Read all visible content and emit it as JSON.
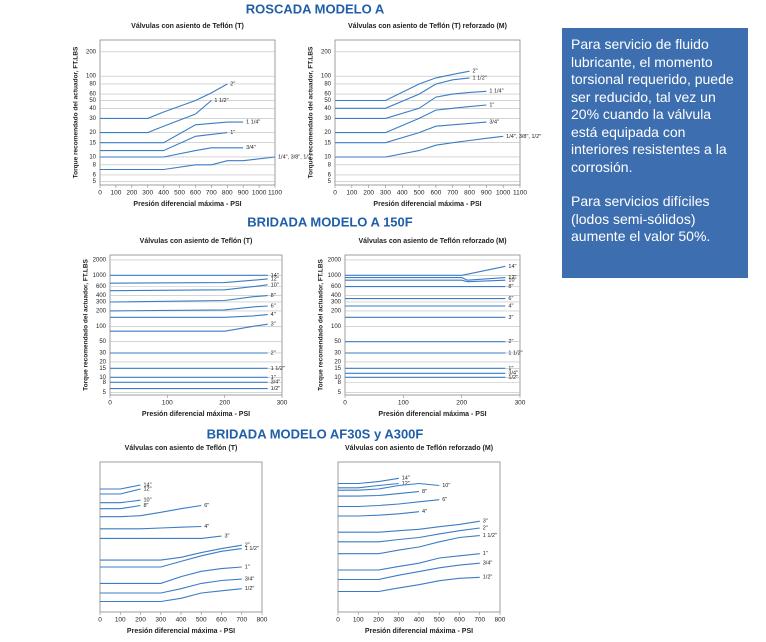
{
  "headings": [
    "ROSCADA MODELO A",
    "BRIDADA MODELO A 150F",
    "BRIDADA MODELO AF30S y A300F"
  ],
  "note": {
    "paragraphs": [
      "Para servicio de fluido lubricante, el momento torsional requerido, puede ser reducido, tal vez un 20% cuando la válvula está equipada con interiores resistentes a la corrosión.",
      "Para servicios difíciles (lodos semi-sólidos) aumente el valor 50%."
    ]
  },
  "chart_data": [
    {
      "type": "line",
      "title": "Válvulas con asiento de Teflón (T)",
      "x_label": "Presión diferencial máxima - PSI",
      "y_label": "Torque recomendado del actuador, FT.LBS",
      "log_y": true,
      "grid": true,
      "color": "#3b7dc4",
      "xlim": [
        0,
        1100
      ],
      "xticks": [
        0,
        100,
        200,
        300,
        400,
        500,
        600,
        700,
        800,
        900,
        1000,
        1100
      ],
      "ylim": [
        4.5,
        280
      ],
      "yticks": [
        5,
        6,
        8,
        10,
        15,
        20,
        30,
        40,
        50,
        60,
        80,
        100,
        200
      ],
      "x": [
        0,
        300,
        400,
        600,
        700,
        800,
        900,
        1100
      ],
      "series": [
        {
          "name": "2\"",
          "values": [
            30,
            30,
            36,
            50,
            62,
            80,
            null,
            null
          ]
        },
        {
          "name": "1 1/2\"",
          "values": [
            20,
            20,
            24,
            34,
            50,
            null,
            null,
            null
          ]
        },
        {
          "name": "1 1/4\"",
          "values": [
            15,
            15,
            15,
            25,
            26,
            27,
            27,
            null
          ]
        },
        {
          "name": "1\"",
          "values": [
            12,
            12,
            12,
            18,
            19,
            20,
            null,
            null
          ]
        },
        {
          "name": "3/4\"",
          "values": [
            10,
            10,
            10,
            12,
            13,
            13,
            13,
            null
          ]
        },
        {
          "name": "1/4\", 3/8\", 1/2\"",
          "values": [
            7,
            7,
            7,
            8,
            8,
            9,
            9,
            10
          ]
        }
      ]
    },
    {
      "type": "line",
      "title": "Válvulas con asiento de Teflón (T) reforzado (M)",
      "x_label": "Presión diferencial máxima - PSI",
      "y_label": "Torque recomendado del actuador, FT.LBS",
      "log_y": true,
      "grid": true,
      "color": "#3b7dc4",
      "xlim": [
        0,
        1100
      ],
      "xticks": [
        0,
        100,
        200,
        300,
        400,
        500,
        600,
        700,
        800,
        900,
        1000,
        1100
      ],
      "ylim": [
        4.5,
        280
      ],
      "yticks": [
        5,
        6,
        8,
        10,
        15,
        20,
        30,
        40,
        50,
        60,
        80,
        100,
        200
      ],
      "x": [
        0,
        300,
        500,
        600,
        700,
        800,
        900,
        1000
      ],
      "series": [
        {
          "name": "2\"",
          "values": [
            50,
            50,
            80,
            95,
            105,
            115,
            null,
            null
          ]
        },
        {
          "name": "1 1/2\"",
          "values": [
            40,
            40,
            60,
            80,
            90,
            95,
            null,
            null
          ]
        },
        {
          "name": "1 1/4\"",
          "values": [
            30,
            30,
            40,
            55,
            60,
            63,
            65,
            null
          ]
        },
        {
          "name": "1\"",
          "values": [
            20,
            20,
            30,
            38,
            40,
            42,
            44,
            null
          ]
        },
        {
          "name": "3/4\"",
          "values": [
            15,
            15,
            20,
            24,
            25,
            26,
            27,
            null
          ]
        },
        {
          "name": "1/4\", 3/8\", 1/2\"",
          "values": [
            10,
            10,
            12,
            14,
            15,
            16,
            17,
            18
          ]
        }
      ]
    },
    {
      "type": "line",
      "title": "Válvulas con asiento de Teflón (T)",
      "x_label": "Presión diferencial máxima - PSI",
      "y_label": "Torque recomendado del actuador, FT.LBS",
      "log_y": true,
      "grid": true,
      "color": "#3b7dc4",
      "xlim": [
        0,
        300
      ],
      "xticks": [
        0,
        100,
        200,
        300
      ],
      "ylim": [
        4.5,
        2500
      ],
      "yticks": [
        5,
        8,
        10,
        15,
        20,
        30,
        50,
        100,
        200,
        300,
        400,
        600,
        1000,
        2000
      ],
      "x": [
        0,
        200,
        250,
        275
      ],
      "series": [
        {
          "name": "14\"",
          "values": [
            1000,
            1000,
            1000,
            1000
          ]
        },
        {
          "name": "12\"",
          "values": [
            700,
            720,
            800,
            850
          ]
        },
        {
          "name": "10\"",
          "values": [
            500,
            520,
            600,
            650
          ]
        },
        {
          "name": "8\"",
          "values": [
            300,
            320,
            380,
            400
          ]
        },
        {
          "name": "6\"",
          "values": [
            200,
            210,
            240,
            250
          ]
        },
        {
          "name": "4\"",
          "values": [
            150,
            150,
            160,
            170
          ]
        },
        {
          "name": "3\"",
          "values": [
            80,
            80,
            100,
            110
          ]
        },
        {
          "name": "2\"",
          "values": [
            30,
            30,
            30,
            30
          ]
        },
        {
          "name": "1 1/2\"",
          "values": [
            15,
            15,
            15,
            15
          ]
        },
        {
          "name": "1\"",
          "values": [
            10,
            10,
            10,
            10
          ]
        },
        {
          "name": "3/4\"",
          "values": [
            8,
            8,
            8,
            8
          ]
        },
        {
          "name": "1/2\"",
          "values": [
            6,
            6,
            6,
            6
          ]
        }
      ]
    },
    {
      "type": "line",
      "title": "Válvulas con asiento de Teflón reforzado (M)",
      "x_label": "Presión diferencial máxima - PSI",
      "y_label": "Torque recomendado del actuador, FT.LBS",
      "log_y": true,
      "grid": true,
      "color": "#3b7dc4",
      "xlim": [
        0,
        300
      ],
      "xticks": [
        0,
        100,
        200,
        300
      ],
      "ylim": [
        4.5,
        2500
      ],
      "yticks": [
        5,
        8,
        10,
        15,
        20,
        30,
        50,
        100,
        200,
        300,
        400,
        600,
        1000,
        2000
      ],
      "x": [
        0,
        200,
        210,
        275
      ],
      "series": [
        {
          "name": "14\"",
          "values": [
            1000,
            1000,
            1050,
            1500
          ]
        },
        {
          "name": "12\"",
          "values": [
            900,
            900,
            800,
            900
          ]
        },
        {
          "name": "10\"",
          "values": [
            800,
            800,
            750,
            800
          ]
        },
        {
          "name": "8\"",
          "values": [
            600,
            600,
            600,
            600
          ]
        },
        {
          "name": "6\"",
          "values": [
            350,
            350,
            350,
            350
          ]
        },
        {
          "name": "4\"",
          "values": [
            250,
            250,
            250,
            250
          ]
        },
        {
          "name": "3\"",
          "values": [
            150,
            150,
            150,
            150
          ]
        },
        {
          "name": "2\"",
          "values": [
            50,
            50,
            50,
            50
          ]
        },
        {
          "name": "1 1/2\"",
          "values": [
            30,
            30,
            30,
            30
          ]
        },
        {
          "name": "1\"",
          "values": [
            15,
            15,
            15,
            15
          ]
        },
        {
          "name": "3/4\"",
          "values": [
            12,
            12,
            12,
            12
          ]
        },
        {
          "name": "1/2\"",
          "values": [
            10,
            10,
            10,
            10
          ]
        }
      ]
    },
    {
      "type": "line",
      "title": "Válvulas con asiento de Teflón (T)",
      "x_label": "Presión diferencial máxima - PSI",
      "log_y": true,
      "grid": false,
      "color": "#3b7dc4",
      "xlim": [
        0,
        800
      ],
      "xticks": [
        0,
        100,
        200,
        300,
        400,
        500,
        600,
        700,
        800
      ],
      "ylim": [
        4.5,
        2500
      ],
      "x": [
        0,
        100,
        200,
        300,
        400,
        500,
        600,
        700
      ],
      "series": [
        {
          "name": "14\"",
          "values": [
            800,
            800,
            950,
            null,
            null,
            null,
            null,
            null
          ]
        },
        {
          "name": "12\"",
          "values": [
            650,
            650,
            800,
            null,
            null,
            null,
            null,
            null
          ]
        },
        {
          "name": "10\"",
          "values": [
            450,
            450,
            500,
            null,
            null,
            null,
            null,
            null
          ]
        },
        {
          "name": "8\"",
          "values": [
            350,
            350,
            400,
            null,
            null,
            null,
            null,
            null
          ]
        },
        {
          "name": "6\"",
          "values": [
            250,
            250,
            260,
            300,
            350,
            400,
            null,
            null
          ]
        },
        {
          "name": "4\"",
          "values": [
            150,
            150,
            150,
            155,
            160,
            165,
            null,
            null
          ]
        },
        {
          "name": "3\"",
          "values": [
            100,
            100,
            100,
            100,
            100,
            100,
            110,
            null
          ]
        },
        {
          "name": "2\"",
          "values": [
            40,
            40,
            40,
            40,
            45,
            55,
            65,
            75
          ]
        },
        {
          "name": "1 1/2\"",
          "values": [
            30,
            30,
            30,
            30,
            38,
            48,
            58,
            65
          ]
        },
        {
          "name": "1\"",
          "values": [
            15,
            15,
            15,
            15,
            20,
            25,
            28,
            30
          ]
        },
        {
          "name": "3/4\"",
          "values": [
            10,
            10,
            10,
            10,
            12,
            15,
            17,
            18
          ]
        },
        {
          "name": "1/2\"",
          "values": [
            7,
            7,
            7,
            7,
            8,
            10,
            11,
            12
          ]
        }
      ]
    },
    {
      "type": "line",
      "title": "Válvulas con asiento de Teflón reforzado (M)",
      "x_label": "Presión diferencial máxima - PSI",
      "log_y": true,
      "grid": false,
      "color": "#3b7dc4",
      "xlim": [
        0,
        800
      ],
      "xticks": [
        0,
        100,
        200,
        300,
        400,
        500,
        600,
        700,
        800
      ],
      "ylim": [
        5,
        3000
      ],
      "x": [
        0,
        100,
        200,
        300,
        400,
        500,
        600,
        700
      ],
      "series": [
        {
          "name": "14\"",
          "values": [
            1200,
            1200,
            1300,
            1500,
            null,
            null,
            null,
            null
          ]
        },
        {
          "name": "12\"",
          "values": [
            1000,
            1000,
            1100,
            1200,
            null,
            null,
            null,
            null
          ]
        },
        {
          "name": "10\"",
          "values": [
            900,
            900,
            950,
            1100,
            1200,
            1100,
            null,
            null
          ]
        },
        {
          "name": "8\"",
          "values": [
            700,
            700,
            720,
            780,
            850,
            null,
            null,
            null
          ]
        },
        {
          "name": "6\"",
          "values": [
            450,
            450,
            470,
            500,
            550,
            600,
            null,
            null
          ]
        },
        {
          "name": "4\"",
          "values": [
            300,
            300,
            310,
            330,
            360,
            null,
            null,
            null
          ]
        },
        {
          "name": "3\"",
          "values": [
            150,
            150,
            150,
            160,
            170,
            190,
            210,
            240
          ]
        },
        {
          "name": "2\"",
          "values": [
            100,
            100,
            100,
            110,
            120,
            140,
            160,
            180
          ]
        },
        {
          "name": "1 1/2\"",
          "values": [
            60,
            60,
            60,
            70,
            80,
            100,
            120,
            130
          ]
        },
        {
          "name": "1\"",
          "values": [
            30,
            30,
            30,
            35,
            40,
            50,
            55,
            60
          ]
        },
        {
          "name": "3/4\"",
          "values": [
            20,
            20,
            20,
            24,
            28,
            33,
            37,
            40
          ]
        },
        {
          "name": "1/2\"",
          "values": [
            12,
            12,
            12,
            14,
            16,
            19,
            21,
            22
          ]
        }
      ]
    }
  ]
}
